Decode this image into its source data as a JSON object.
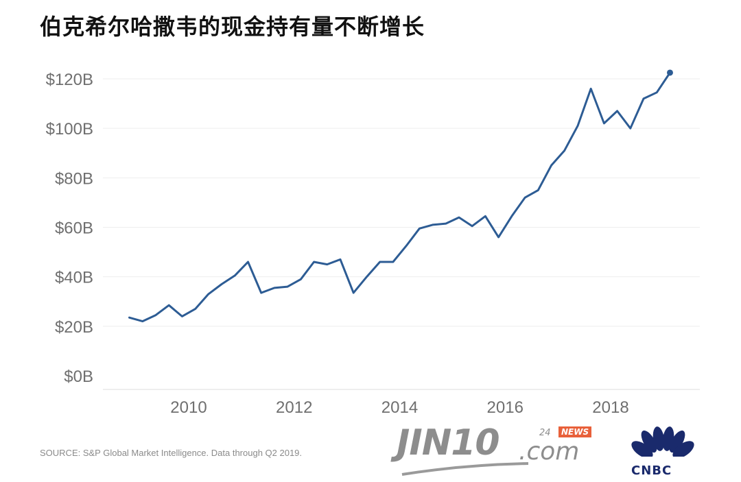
{
  "title": "伯克希尔哈撒韦的现金持有量不断增长",
  "source": "SOURCE: S&P Global Market Intelligence. Data through Q2 2019.",
  "watermark": {
    "brand": "JIN10",
    "domain": ".com",
    "tag_number": "24",
    "tag_news": "NEWS"
  },
  "logo": {
    "text": "CNBC"
  },
  "colors": {
    "line": "#2d5c94",
    "grid": "#eeeeee",
    "tick_text": "#6f6f6f",
    "news_badge": "#e8603a",
    "cnbc_blue": "#1a2a6c"
  },
  "chart_data": {
    "type": "line",
    "title": "伯克希尔哈撒韦的现金持有量不断增长",
    "xlabel": "",
    "ylabel": "",
    "ylim": [
      0,
      125
    ],
    "xlim": [
      2008.6,
      2019.5
    ],
    "yticks": [
      {
        "value": 0,
        "label": "$0B"
      },
      {
        "value": 20,
        "label": "$20B"
      },
      {
        "value": 40,
        "label": "$40B"
      },
      {
        "value": 60,
        "label": "$60B"
      },
      {
        "value": 80,
        "label": "$80B"
      },
      {
        "value": 100,
        "label": "$100B"
      },
      {
        "value": 120,
        "label": "$120B"
      }
    ],
    "xticks": [
      {
        "value": 2010,
        "label": "2010"
      },
      {
        "value": 2012,
        "label": "2012"
      },
      {
        "value": 2014,
        "label": "2014"
      },
      {
        "value": 2016,
        "label": "2016"
      },
      {
        "value": 2018,
        "label": "2018"
      }
    ],
    "grid": true,
    "series": [
      {
        "x": [
          2008.875,
          2009.125,
          2009.375,
          2009.625,
          2009.875,
          2010.125,
          2010.375,
          2010.625,
          2010.875,
          2011.125,
          2011.375,
          2011.625,
          2011.875,
          2012.125,
          2012.375,
          2012.625,
          2012.875,
          2013.125,
          2013.375,
          2013.625,
          2013.875,
          2014.125,
          2014.375,
          2014.625,
          2014.875,
          2015.125,
          2015.375,
          2015.625,
          2015.875,
          2016.125,
          2016.375,
          2016.625,
          2016.875,
          2017.125,
          2017.375,
          2017.625,
          2017.875,
          2018.125,
          2018.375,
          2018.625,
          2018.875,
          2019.125
        ],
        "values": [
          23.5,
          22,
          24.5,
          28.5,
          24,
          27,
          33,
          37,
          40.5,
          46,
          33.5,
          35.5,
          36,
          39,
          46,
          45,
          47,
          33.5,
          40,
          46,
          46,
          52.5,
          59.5,
          61,
          61.5,
          64,
          60.5,
          64.5,
          56,
          64.5,
          72,
          75,
          85,
          91,
          101,
          116,
          102,
          107,
          100,
          112,
          114.5,
          122.5
        ]
      }
    ]
  }
}
